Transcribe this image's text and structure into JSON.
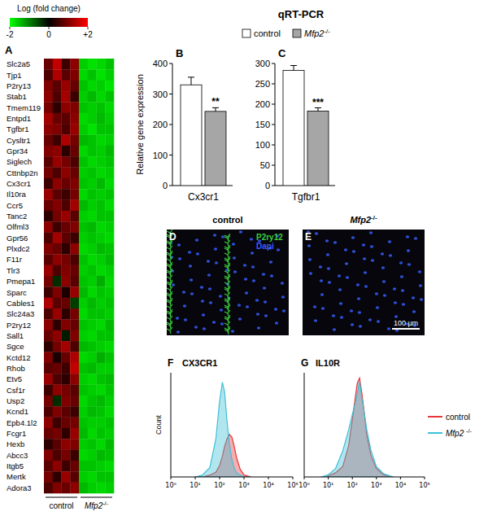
{
  "chart_data": [
    {
      "type": "heatmap",
      "panel": "A",
      "colorbar": {
        "title": "Log (fold change)",
        "range": [
          -2,
          2
        ],
        "ticks": [
          -2,
          0,
          {
            "value": 2,
            "label": "+2"
          }
        ]
      },
      "rows": [
        "Slc2a5",
        "Tjp1",
        "P2ry13",
        "Stab1",
        "Tmem119",
        "Entpd1",
        "Tgfbr1",
        "Cysltr1",
        "Gpr34",
        "Siglech",
        "Cttnbp2n",
        "Cx3cr1",
        "Il10ra",
        "Ccr5",
        "Tanc2",
        "Olfml3",
        "Gpr56",
        "Plxdc2",
        "F11r",
        "Tlr3",
        "Pmepa1",
        "Sparc",
        "Cables1",
        "Slc24a3",
        "P2ry12",
        "Sall1",
        "Sgce",
        "Kctd12",
        "Rhob",
        "Etv5",
        "Csf1r",
        "Usp2",
        "Kcnd1",
        "Epb4.1l2",
        "Fcgr1",
        "Hexb",
        "Abcc3",
        "Itgb5",
        "Mertk",
        "Adora3"
      ],
      "groups": [
        {
          "label": "control",
          "size": 4
        },
        {
          "label": "Mfp2-/-",
          "size": 4
        }
      ],
      "cells": [
        [
          0.6,
          1.4,
          0.3,
          0.9,
          -1.5,
          -1.7,
          -1.6,
          -1.4
        ],
        [
          0.4,
          1.2,
          0.5,
          0.8,
          -1.6,
          -1.4,
          -1.7,
          -1.5
        ],
        [
          0.8,
          0.5,
          1.0,
          0.6,
          -1.4,
          -1.6,
          -1.5,
          -1.7
        ],
        [
          0.9,
          0.4,
          1.1,
          0.3,
          -1.5,
          -1.3,
          -1.6,
          -1.4
        ],
        [
          0.7,
          0.2,
          0.9,
          0.8,
          -1.4,
          -1.5,
          -1.4,
          -1.6
        ],
        [
          1.1,
          0.6,
          0.5,
          0.9,
          -1.6,
          -1.5,
          -1.3,
          -1.5
        ],
        [
          0.9,
          0.8,
          0.4,
          1.0,
          -1.5,
          -1.7,
          -1.4,
          -1.4
        ],
        [
          0.6,
          0.3,
          1.2,
          0.7,
          -1.3,
          -1.4,
          -1.6,
          -1.5
        ],
        [
          0.8,
          0.9,
          0.2,
          0.6,
          -1.6,
          -1.4,
          -1.5,
          -1.3
        ],
        [
          0.5,
          1.0,
          0.7,
          0.4,
          -1.4,
          -1.6,
          -1.5,
          -1.4
        ],
        [
          0.7,
          0.4,
          0.9,
          0.6,
          -1.5,
          -1.4,
          -1.6,
          -1.5
        ],
        [
          0.3,
          0.9,
          0.6,
          0.8,
          -1.4,
          -1.5,
          -1.3,
          -1.6
        ],
        [
          1.0,
          0.5,
          0.3,
          0.7,
          -1.6,
          -1.4,
          -1.5,
          -1.4
        ],
        [
          0.6,
          0.8,
          0.4,
          1.1,
          -1.3,
          -1.5,
          -1.4,
          -1.6
        ],
        [
          0.2,
          0.7,
          1.0,
          0.5,
          -1.5,
          -1.6,
          -1.4,
          -1.4
        ],
        [
          0.9,
          0.3,
          0.6,
          0.8,
          -1.4,
          -1.3,
          -1.6,
          -1.5
        ],
        [
          0.4,
          1.1,
          0.5,
          0.3,
          -1.5,
          -1.4,
          -1.5,
          -1.6
        ],
        [
          0.8,
          0.6,
          0.2,
          0.9,
          -1.6,
          -1.5,
          -1.3,
          -1.4
        ],
        [
          0.5,
          0.9,
          0.7,
          0.4,
          -1.4,
          -1.6,
          -1.5,
          -1.3
        ],
        [
          1.0,
          0.4,
          0.8,
          0.6,
          -1.5,
          -1.4,
          -1.6,
          -1.5
        ],
        [
          0.7,
          -0.2,
          0.9,
          0.5,
          -1.4,
          -1.5,
          -1.2,
          -1.6
        ],
        [
          0.3,
          0.8,
          0.1,
          1.0,
          -1.3,
          -1.6,
          -1.4,
          -1.5
        ],
        [
          1.2,
          0.5,
          0.6,
          -0.3,
          -1.5,
          -1.3,
          -1.5,
          -1.4
        ],
        [
          0.4,
          1.0,
          0.2,
          0.7,
          -1.6,
          -1.4,
          -1.4,
          -1.5
        ],
        [
          0.9,
          0.2,
          0.8,
          0.6,
          -1.4,
          -1.5,
          -1.6,
          -1.3
        ],
        [
          0.6,
          0.9,
          -0.1,
          0.8,
          -1.5,
          -1.6,
          -1.4,
          -1.4
        ],
        [
          0.2,
          0.7,
          1.1,
          0.4,
          -1.3,
          -1.4,
          -1.5,
          -1.6
        ],
        [
          0.8,
          0.1,
          0.6,
          1.2,
          -1.6,
          -1.5,
          -1.2,
          -1.4
        ],
        [
          0.5,
          0.6,
          0.3,
          1.4,
          -1.4,
          -1.3,
          -1.5,
          -1.5
        ],
        [
          1.0,
          0.4,
          0.2,
          0.9,
          -1.5,
          -1.6,
          -1.4,
          -1.3
        ],
        [
          0.3,
          0.9,
          0.7,
          0.5,
          -1.4,
          -1.5,
          -1.6,
          -1.4
        ],
        [
          0.7,
          -0.2,
          0.8,
          0.6,
          -1.6,
          -1.4,
          -1.3,
          -1.5
        ],
        [
          0.4,
          0.8,
          0.5,
          0.3,
          -1.5,
          -1.3,
          -1.4,
          -1.6
        ],
        [
          0.9,
          0.3,
          0.6,
          0.7,
          -1.4,
          -1.5,
          -1.5,
          -1.4
        ],
        [
          0.6,
          0.7,
          0.2,
          1.0,
          -1.3,
          -1.6,
          -1.4,
          -1.5
        ],
        [
          0.2,
          0.5,
          0.9,
          0.8,
          -1.5,
          -1.4,
          -1.6,
          -1.3
        ],
        [
          0.8,
          0.4,
          0.7,
          0.3,
          -1.6,
          -1.5,
          -1.3,
          -1.4
        ],
        [
          0.5,
          0.9,
          0.3,
          0.6,
          -1.4,
          -1.4,
          -1.5,
          -1.6
        ],
        [
          0.7,
          0.2,
          1.0,
          0.5,
          -1.5,
          -1.6,
          -1.4,
          -1.4
        ],
        [
          0.4,
          0.8,
          0.6,
          0.9,
          -1.3,
          -1.5,
          -1.6,
          -1.5
        ]
      ]
    },
    {
      "type": "bar",
      "panel": "B",
      "title": "qRT-PCR",
      "ylabel": "Relative gene expression",
      "categories": [
        "Cx3cr1"
      ],
      "series": [
        {
          "name": "control",
          "color": "#ffffff",
          "values": [
            330
          ],
          "errors": [
            25
          ]
        },
        {
          "name": "Mfp2-/-",
          "color": "#a6a6a6",
          "values": [
            243
          ],
          "errors": [
            12
          ],
          "significance": "**"
        }
      ],
      "ylim": [
        0,
        400
      ],
      "yticks": [
        0,
        100,
        200,
        300,
        400
      ],
      "legend": "top"
    },
    {
      "type": "bar",
      "panel": "C",
      "categories": [
        "Tgfbr1"
      ],
      "series": [
        {
          "color": "#ffffff",
          "values": [
            283
          ],
          "errors": [
            12
          ]
        },
        {
          "color": "#a6a6a6",
          "values": [
            183
          ],
          "errors": [
            8
          ],
          "significance": "***"
        }
      ],
      "ylim": [
        0,
        300
      ],
      "yticks": [
        0,
        50,
        100,
        150,
        200,
        250,
        300
      ]
    },
    {
      "type": "image",
      "panel": "D",
      "title": "control",
      "labels": [
        {
          "text": "P2ry12",
          "color": "#3ccf3c"
        },
        {
          "text": "Dapi",
          "color": "#3a5cff"
        }
      ]
    },
    {
      "type": "image",
      "panel": "E",
      "title": "Mfp2-/-",
      "scale_bar": "100 µm"
    },
    {
      "type": "area",
      "panel": "F",
      "title": "CX3CR1",
      "ylabel": "Count",
      "x": [
        10,
        20,
        40,
        70,
        100,
        130,
        160,
        200,
        250,
        320,
        400,
        500,
        700,
        1000,
        2000
      ],
      "series": [
        {
          "color": "#e8353a",
          "values": [
            0,
            0,
            2,
            5,
            12,
            22,
            32,
            40,
            45,
            42,
            32,
            20,
            8,
            2,
            0
          ]
        },
        {
          "color": "#3cc0d8",
          "values": [
            0,
            2,
            10,
            40,
            80,
            100,
            90,
            60,
            35,
            18,
            9,
            4,
            2,
            0,
            0
          ]
        }
      ],
      "log": "x",
      "xlim": [
        1,
        100000
      ],
      "ylim": [
        0,
        110
      ],
      "tick_labels": "x",
      "xticks": [
        {
          "value": 1,
          "label": "10⁰"
        },
        {
          "value": 10,
          "label": "10¹"
        },
        {
          "value": 100,
          "label": "10²"
        },
        {
          "value": 1000,
          "label": "10³"
        },
        {
          "value": 10000,
          "label": "10⁴"
        },
        {
          "value": 100000,
          "label": "10⁵"
        }
      ]
    },
    {
      "type": "area",
      "panel": "G",
      "title": "IL10R",
      "x": [
        5,
        10,
        20,
        40,
        70,
        100,
        130,
        160,
        200,
        250,
        320,
        400,
        600,
        1000,
        2000,
        5000
      ],
      "series": [
        {
          "name": "control",
          "color": "#e8353a",
          "values": [
            0,
            1,
            4,
            10,
            30,
            55,
            75,
            90,
            95,
            80,
            60,
            40,
            20,
            8,
            2,
            0
          ]
        },
        {
          "name": "Mfp2 -/-",
          "color": "#3cc0d8",
          "values": [
            0,
            2,
            8,
            25,
            45,
            60,
            70,
            80,
            92,
            75,
            60,
            45,
            25,
            10,
            3,
            0
          ]
        }
      ],
      "log": "x",
      "xlim": [
        1,
        100000
      ],
      "ylim": [
        0,
        100
      ],
      "tick_labels": "x",
      "legend": "right",
      "xticks": [
        {
          "value": 1,
          "label": "10⁰"
        },
        {
          "value": 10,
          "label": "10¹"
        },
        {
          "value": 100,
          "label": "10²"
        },
        {
          "value": 1000,
          "label": "10³"
        },
        {
          "value": 10000,
          "label": "10⁴"
        },
        {
          "value": 100000,
          "label": "10⁵"
        }
      ]
    }
  ]
}
